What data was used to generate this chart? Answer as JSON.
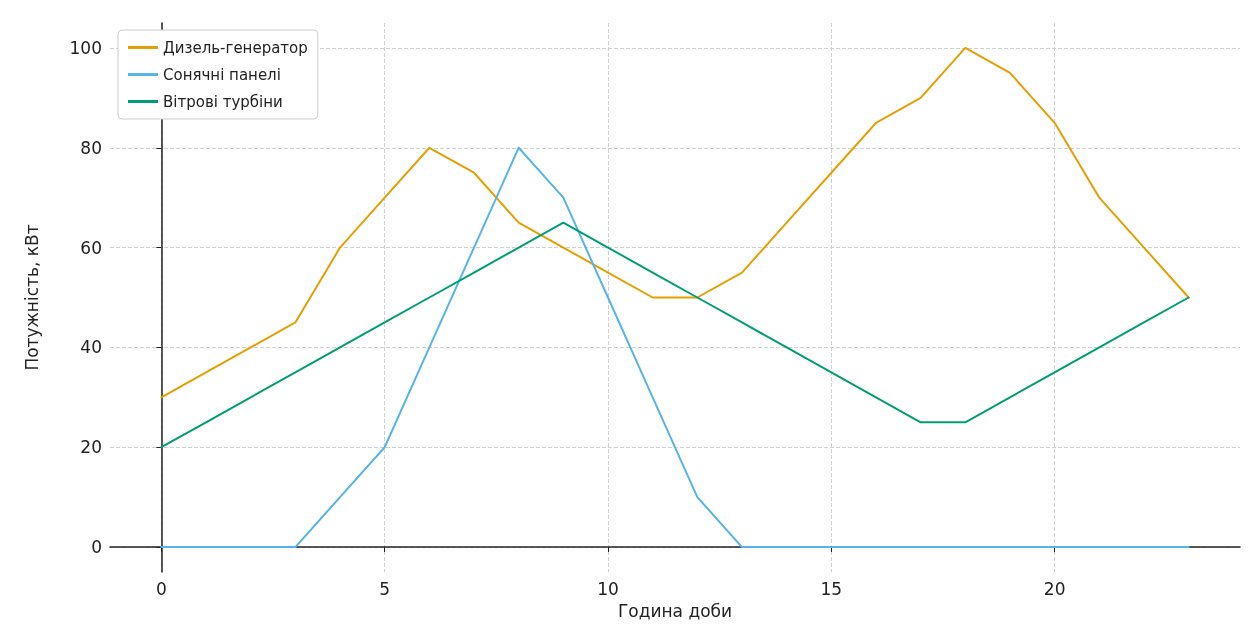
{
  "chart_data": {
    "type": "line",
    "xlabel": "Година доби",
    "ylabel": "Потужність, кВт",
    "x": [
      0,
      1,
      2,
      3,
      4,
      5,
      6,
      7,
      8,
      9,
      10,
      11,
      12,
      13,
      14,
      15,
      16,
      17,
      18,
      19,
      20,
      21,
      22,
      23
    ],
    "series": [
      {
        "name": "Дизель-генератор",
        "color": "#e69f00",
        "values": [
          30,
          35,
          40,
          45,
          60,
          70,
          80,
          75,
          65,
          60,
          55,
          50,
          50,
          55,
          65,
          75,
          85,
          90,
          100,
          95,
          85,
          70,
          60,
          50
        ]
      },
      {
        "name": "Сонячні панелі",
        "color": "#56b4e9",
        "values": [
          0,
          0,
          0,
          0,
          10,
          20,
          40,
          60,
          80,
          70,
          50,
          30,
          10,
          0,
          0,
          0,
          0,
          0,
          0,
          0,
          0,
          0,
          0,
          0
        ]
      },
      {
        "name": "Вітрові турбіни",
        "color": "#009e73",
        "values": [
          20,
          25,
          30,
          35,
          40,
          45,
          50,
          55,
          60,
          65,
          60,
          55,
          50,
          45,
          40,
          35,
          30,
          25,
          25,
          30,
          35,
          40,
          45,
          50
        ]
      }
    ],
    "xlim": [
      -1.15,
      24.15
    ],
    "xticks": [
      0,
      5,
      10,
      15,
      20
    ],
    "ylim": [
      -5,
      105
    ],
    "yticks": [
      0,
      20,
      40,
      60,
      80,
      100
    ],
    "grid": true,
    "legend": "top left",
    "marker": "none",
    "line_style": "solid"
  }
}
